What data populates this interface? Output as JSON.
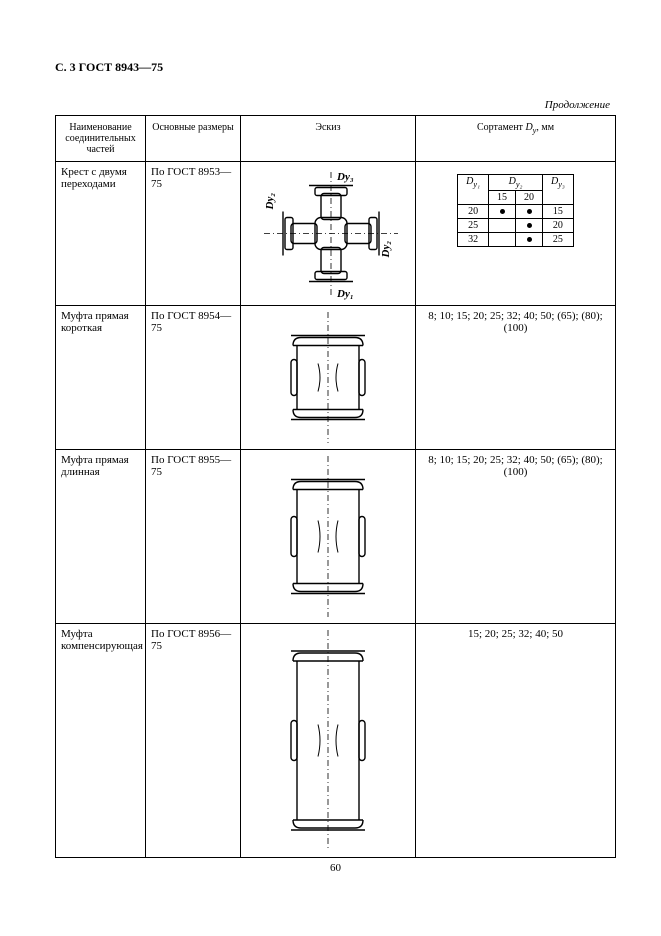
{
  "page": {
    "header": "С. 3 ГОСТ 8943—75",
    "continuation": "Продолжение",
    "footer_pagenum": "60"
  },
  "columns": {
    "name": "Наименование соединительных частей",
    "dimensions": "Основные размеры",
    "sketch": "Эскиз",
    "assortment_prefix": "Сортамент ",
    "assortment_symbol": "D",
    "assortment_sub": "y",
    "assortment_suffix": ",  мм"
  },
  "rows": [
    {
      "name": "Крест с двумя переходами",
      "dim": "По ГОСТ 8953—75",
      "sketch_type": "cross",
      "sketch_height": 135,
      "sort_type": "table",
      "sort_table": {
        "head_Dy1": "D",
        "head_Dy1_sub": "y₁",
        "head_Dy2": "D",
        "head_Dy2_sub": "y₂",
        "head_Dy3": "D",
        "head_Dy3_sub": "y₃",
        "sub15": "15",
        "sub20": "20",
        "rows": [
          {
            "dy1": "20",
            "c15": true,
            "c20": true,
            "dy3": "15"
          },
          {
            "dy1": "25",
            "c15": false,
            "c20": true,
            "dy3": "20"
          },
          {
            "dy1": "32",
            "c15": false,
            "c20": true,
            "dy3": "25"
          }
        ]
      }
    },
    {
      "name": "Муфта прямая короткая",
      "dim": "По ГОСТ 8954—75",
      "sketch_type": "coupling",
      "sketch_height": 135,
      "coupling_h": 80,
      "sort_type": "list",
      "sort_list": "8; 10; 15; 20; 25; 32; 40; 50; (65); (80); (100)"
    },
    {
      "name": "Муфта прямая длинная",
      "dim": "По ГОСТ 8955—75",
      "sketch_type": "coupling",
      "sketch_height": 165,
      "coupling_h": 110,
      "sort_type": "list",
      "sort_list": "8; 10; 15; 20; 25; 32; 40; 50; (65); (80); (100)"
    },
    {
      "name": "Муфта компенсирующая",
      "dim": "По ГОСТ 8956—75",
      "sketch_type": "coupling",
      "sketch_height": 225,
      "coupling_h": 175,
      "sort_type": "list",
      "sort_list": "15; 20; 25; 32; 40; 50"
    }
  ],
  "svg_labels": {
    "Dy1": "Dy₁",
    "Dy2": "Dy₂",
    "Dy3": "Dy₃"
  },
  "style": {
    "stroke": "#000000",
    "stroke_w": 1.4,
    "dash": "6,3,1,3",
    "font": "italic bold 11px Times New Roman"
  }
}
